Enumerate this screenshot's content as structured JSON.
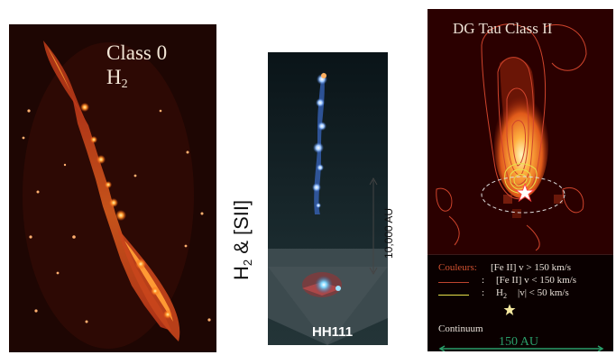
{
  "panel_left": {
    "title_line1": "Class 0",
    "title_main": "H",
    "title_sub": "2"
  },
  "panel_middle": {
    "side_label_main": "H",
    "side_label_sub": "2",
    "side_label_rest": " & [SII]",
    "scale_label": "10,000 AU",
    "object_label": "HH111"
  },
  "panel_right": {
    "title": "DG Tau  Class II",
    "legend": {
      "heading": "Couleurs:",
      "row1_text": "[Fe II] v  > 150 km/s",
      "row2_key": ":",
      "row2_text": "[Fe II] v < 150 km/s",
      "row3_key": ":",
      "row3_main": "H",
      "row3_sub": "2",
      "row3_text": "|v| < 50 km/s",
      "continuum": "Continuum",
      "scale": "150 AU"
    },
    "colors": {
      "fe_fast": "#c0452e",
      "fe_slow": "#c0452e",
      "h2": "#e6e04a",
      "scale": "#2a9e6a"
    }
  }
}
